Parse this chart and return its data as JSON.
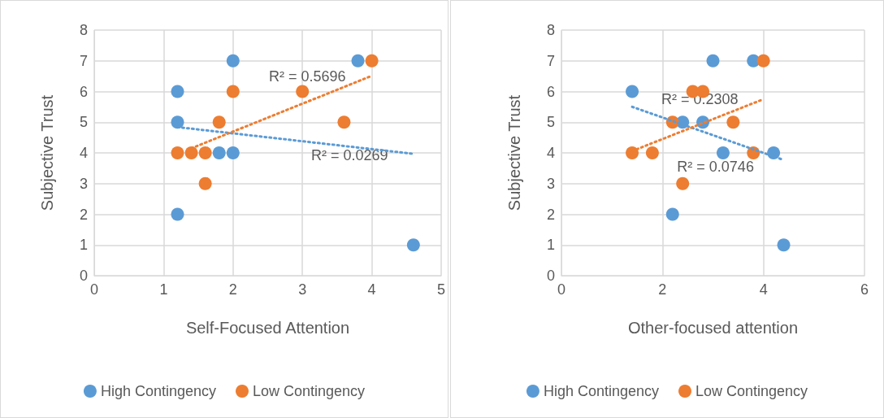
{
  "chart_data": [
    {
      "type": "scatter",
      "xlabel": "Self-Focused Attention",
      "ylabel": "Subjective Trust",
      "xlim": [
        0,
        5
      ],
      "ylim": [
        0,
        8
      ],
      "xticks": [
        0,
        1,
        2,
        3,
        4,
        5
      ],
      "yticks": [
        0,
        1,
        2,
        3,
        4,
        5,
        6,
        7,
        8
      ],
      "grid": true,
      "legend": "bottom",
      "marker": "circle",
      "annotations": [
        "R² = 0.5696",
        "R² = 0.0269"
      ],
      "series": [
        {
          "name": "High Contingency",
          "color": "#5b9bd5",
          "x": [
            1.2,
            1.2,
            2,
            3.8,
            1.2,
            1.8,
            2,
            4.6
          ],
          "values": [
            6,
            5,
            7,
            7,
            2,
            4,
            4,
            1
          ]
        },
        {
          "name": "Low Contingency",
          "color": "#ed7d31",
          "x": [
            4,
            2,
            3,
            1.8,
            3.6,
            1.2,
            1.4,
            1.6,
            1.6
          ],
          "values": [
            7,
            6,
            6,
            5,
            5,
            4,
            4,
            4,
            3
          ]
        },
        {
          "type": "line",
          "color": "#5b9bd5",
          "line_style": "dotted",
          "marker": "none",
          "x": [
            1.2,
            4.6
          ],
          "values": [
            4.84,
            3.97
          ]
        },
        {
          "type": "line",
          "color": "#ed7d31",
          "line_style": "dotted",
          "marker": "none",
          "x": [
            1.4,
            4
          ],
          "values": [
            4.15,
            6.51
          ]
        }
      ]
    },
    {
      "type": "scatter",
      "xlabel": "Other-focused attention",
      "ylabel": "Subjective Trust",
      "xlim": [
        0,
        6
      ],
      "ylim": [
        0,
        8
      ],
      "xticks": [
        0,
        2,
        4,
        6
      ],
      "yticks": [
        0,
        1,
        2,
        3,
        4,
        5,
        6,
        7,
        8
      ],
      "grid": true,
      "legend": "bottom",
      "marker": "circle",
      "annotations": [
        "R² = 0.2308",
        "R² = 0.0746"
      ],
      "series": [
        {
          "name": "High Contingency",
          "color": "#5b9bd5",
          "x": [
            1.4,
            3,
            3.8,
            2.4,
            2.8,
            3.2,
            4.2,
            2.2,
            4.4
          ],
          "values": [
            6,
            7,
            7,
            5,
            5,
            4,
            4,
            2,
            1
          ]
        },
        {
          "name": "Low Contingency",
          "color": "#ed7d31",
          "x": [
            4,
            2.6,
            2.8,
            2.2,
            3.4,
            1.4,
            1.8,
            3.8,
            2.4
          ],
          "values": [
            7,
            6,
            6,
            5,
            5,
            4,
            4,
            4,
            3
          ]
        },
        {
          "type": "line",
          "color": "#5b9bd5",
          "line_style": "dotted",
          "marker": "none",
          "x": [
            1.4,
            4.4
          ],
          "values": [
            5.5,
            3.77
          ]
        },
        {
          "type": "line",
          "color": "#ed7d31",
          "line_style": "dotted",
          "marker": "none",
          "x": [
            1.4,
            4
          ],
          "values": [
            4.06,
            5.75
          ]
        }
      ]
    }
  ]
}
